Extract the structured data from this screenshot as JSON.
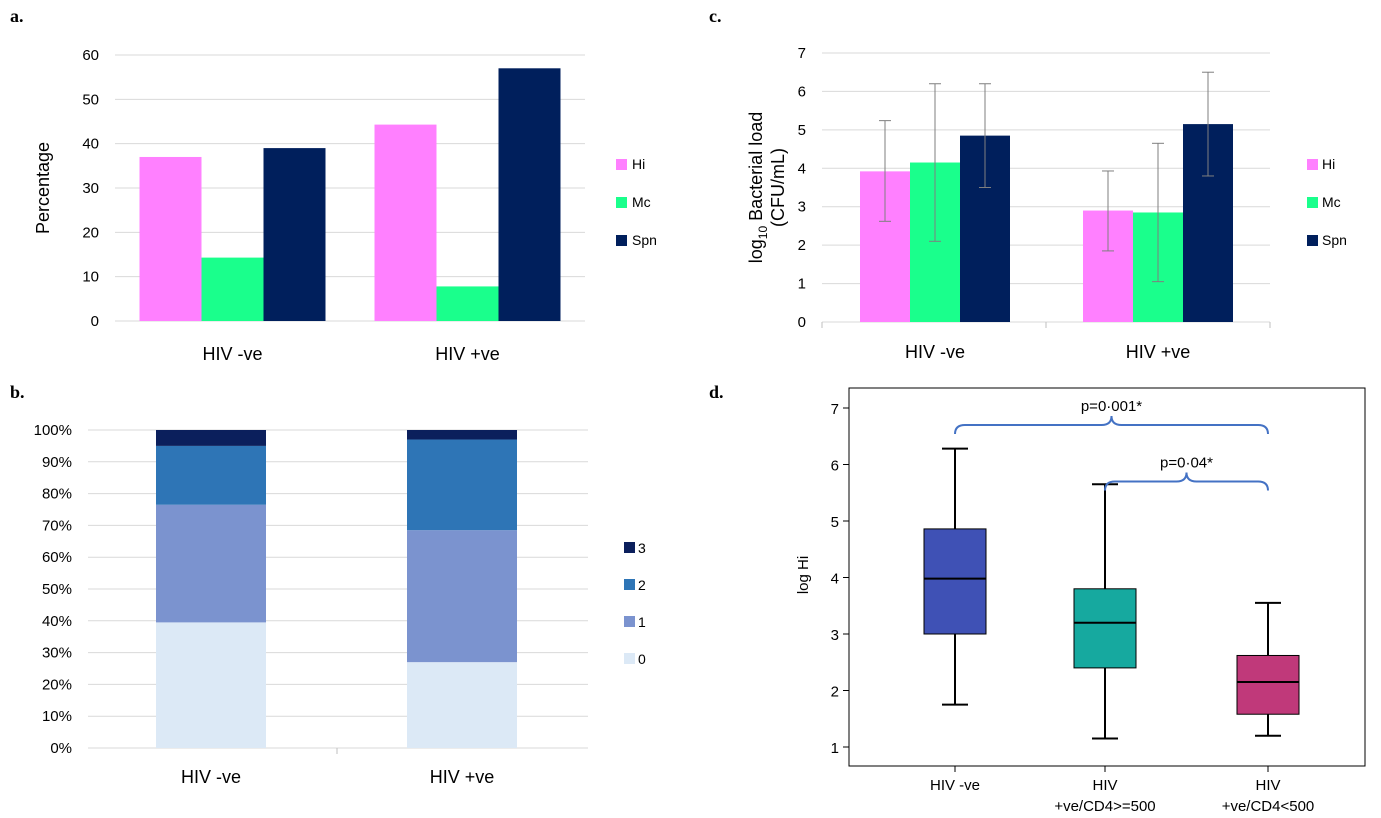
{
  "panels": {
    "a": "a.",
    "b": "b.",
    "c": "c.",
    "d": "d."
  },
  "chart_data": [
    {
      "panel": "a",
      "type": "bar",
      "categories": [
        "HIV -ve",
        "HIV +ve"
      ],
      "series": [
        {
          "name": "Hi",
          "values": [
            37,
            44.3
          ],
          "color": "#ff80ff"
        },
        {
          "name": "Mc",
          "values": [
            14.3,
            7.8
          ],
          "color": "#1aff8c"
        },
        {
          "name": "Spn",
          "values": [
            39,
            57
          ],
          "color": "#001f5c"
        }
      ],
      "ylabel": "Percentage",
      "ylim": [
        0,
        60
      ],
      "yticks": [
        "0",
        "10",
        "20",
        "30",
        "40",
        "50",
        "60"
      ],
      "grid": true,
      "legend": "right"
    },
    {
      "panel": "b",
      "type": "bar",
      "stacked": true,
      "categories": [
        "HIV -ve",
        "HIV +ve"
      ],
      "series": [
        {
          "name": "0",
          "values": [
            39.5,
            27
          ],
          "color": "#dce9f6"
        },
        {
          "name": "1",
          "values": [
            37,
            41.5
          ],
          "color": "#7b93cf"
        },
        {
          "name": "2",
          "values": [
            18.5,
            28.5
          ],
          "color": "#2e75b6"
        },
        {
          "name": "3",
          "values": [
            5,
            3
          ],
          "color": "#0b1f5c"
        }
      ],
      "ylim": [
        0,
        100
      ],
      "yticks": [
        "0%",
        "10%",
        "20%",
        "30%",
        "40%",
        "50%",
        "60%",
        "70%",
        "80%",
        "90%",
        "100%"
      ],
      "grid": true,
      "legend": "right"
    },
    {
      "panel": "c",
      "type": "bar",
      "categories": [
        "HIV -ve",
        "HIV +ve"
      ],
      "series": [
        {
          "name": "Hi",
          "values": [
            3.92,
            2.9
          ],
          "err_low": [
            2.62,
            1.85
          ],
          "err_high": [
            5.24,
            3.93
          ],
          "color": "#ff80ff"
        },
        {
          "name": "Mc",
          "values": [
            4.15,
            2.85
          ],
          "err_low": [
            2.1,
            1.05
          ],
          "err_high": [
            6.2,
            4.65
          ],
          "color": "#1aff8c"
        },
        {
          "name": "Spn",
          "values": [
            4.85,
            5.15
          ],
          "err_low": [
            3.5,
            3.8
          ],
          "err_high": [
            6.2,
            6.5
          ],
          "color": "#001f5c"
        }
      ],
      "ylabel_main": "log",
      "ylabel_sub": "10",
      "ylabel_rest": " Bacterial load",
      "ylabel_line2": "(CFU/mL)",
      "ylim": [
        0,
        7
      ],
      "yticks": [
        "0",
        "1",
        "2",
        "3",
        "4",
        "5",
        "6",
        "7"
      ],
      "grid": true,
      "legend": "right"
    },
    {
      "panel": "d",
      "type": "box",
      "categories": [
        {
          "line1": "HIV -ve",
          "line2": ""
        },
        {
          "line1": "HIV",
          "line2": "+ve/CD4>=500"
        },
        {
          "line1": "HIV",
          "line2": "+ve/CD4<500"
        }
      ],
      "boxes": [
        {
          "min": 1.75,
          "q1": 3.0,
          "median": 3.98,
          "q3": 4.86,
          "max": 6.28,
          "color": "#3f51b5"
        },
        {
          "min": 1.15,
          "q1": 2.4,
          "median": 3.2,
          "q3": 3.8,
          "max": 5.65,
          "color": "#16a99f"
        },
        {
          "min": 1.2,
          "q1": 1.58,
          "median": 2.15,
          "q3": 2.62,
          "max": 3.55,
          "color": "#c0397a"
        }
      ],
      "ylabel": "log Hi",
      "ylim": [
        0.7,
        7.3
      ],
      "yticks": [
        "1",
        "2",
        "3",
        "4",
        "5",
        "6",
        "7"
      ],
      "annotations": [
        {
          "text": "p=0·001*",
          "from": 0,
          "to": 2,
          "y": 6.7
        },
        {
          "text": "p=0·04*",
          "from": 1,
          "to": 2,
          "y": 5.7
        }
      ],
      "bracket_color": "#4472c4"
    }
  ]
}
